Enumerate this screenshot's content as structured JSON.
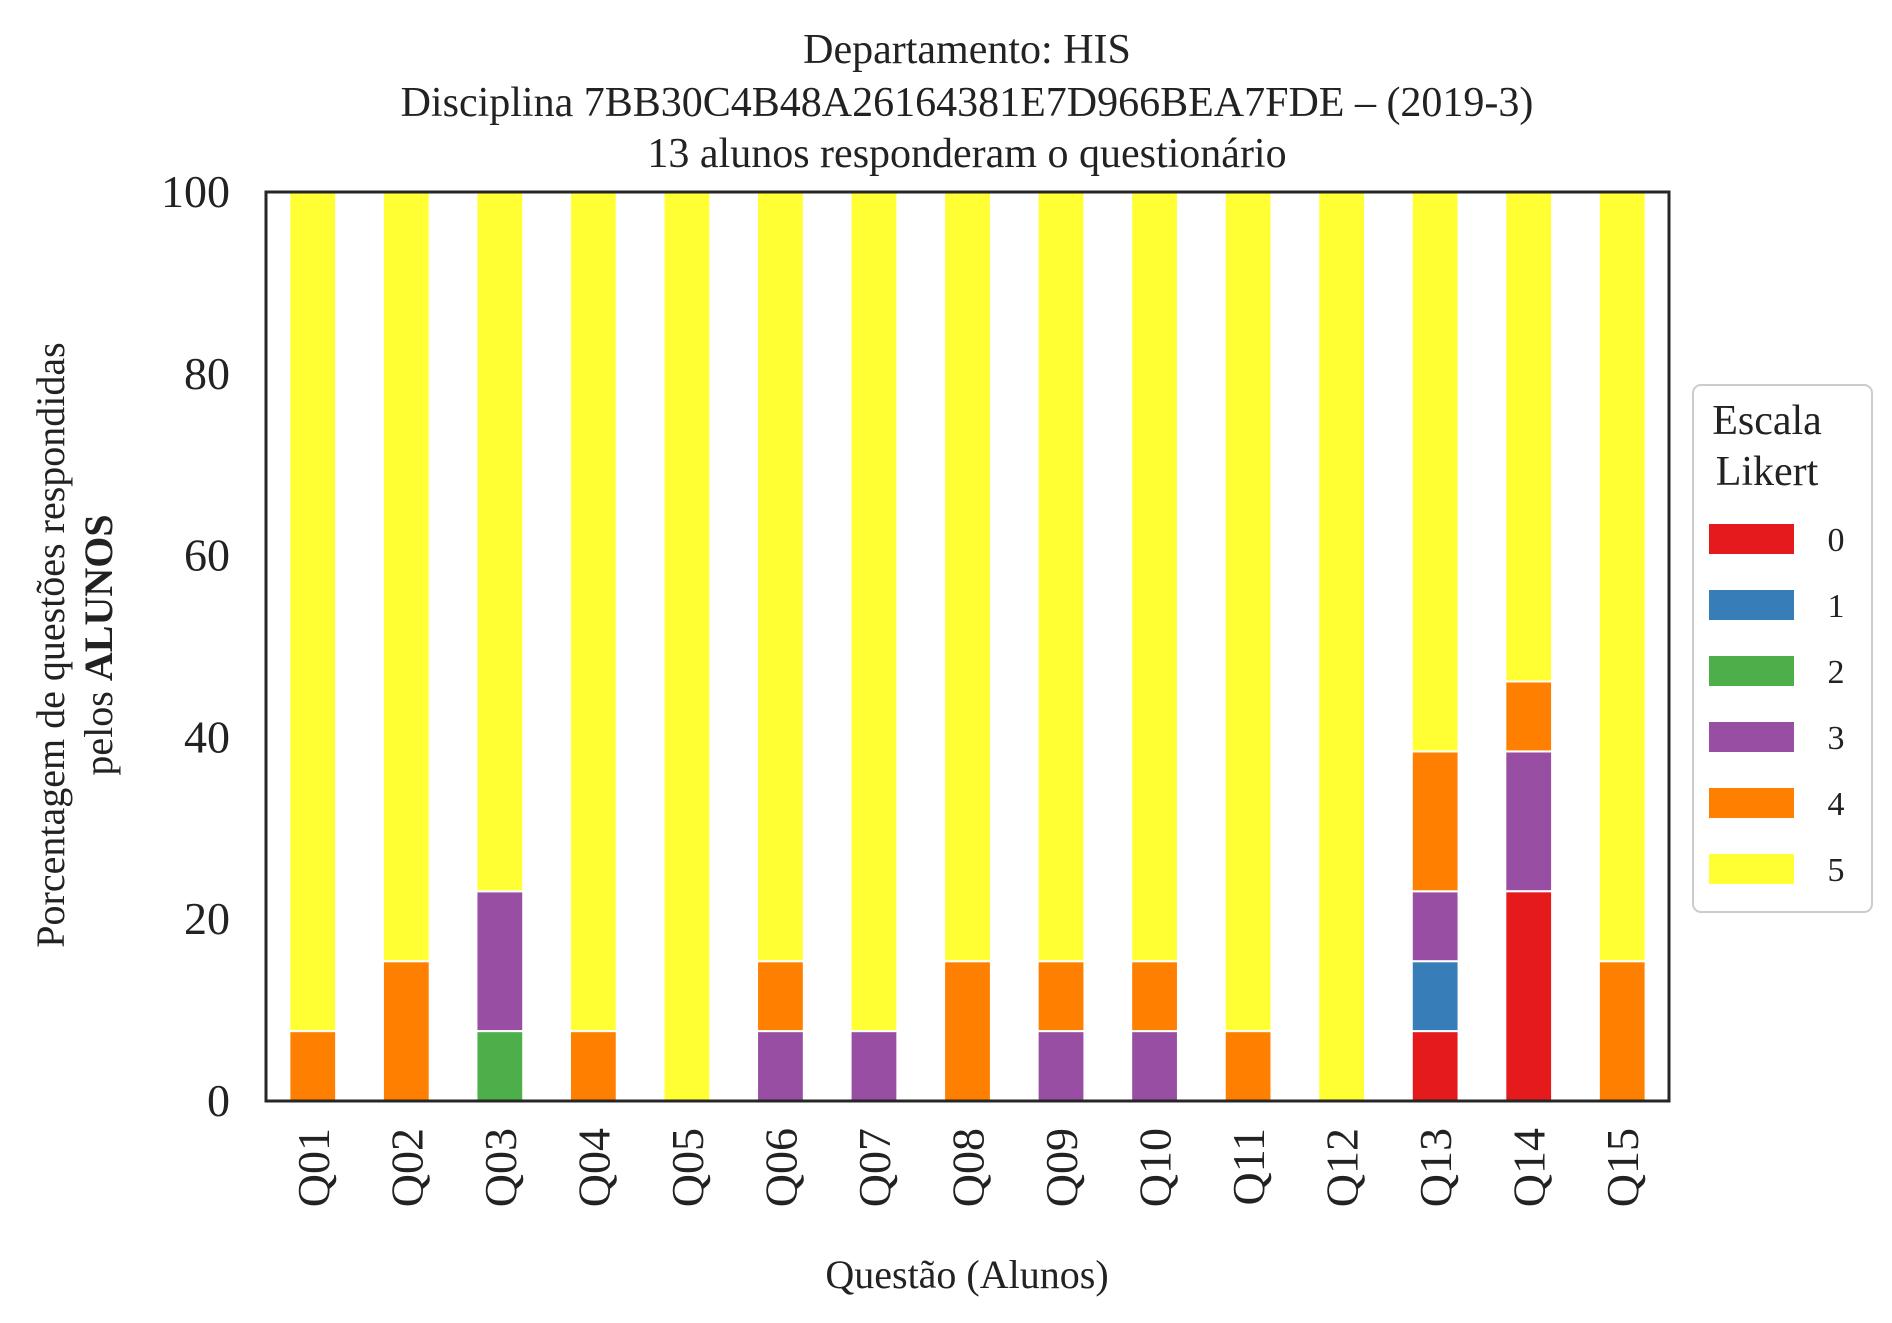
{
  "chart_data": {
    "type": "bar",
    "stacked": true,
    "title_lines": [
      "Departamento: HIS",
      "Disciplina 7BB30C4B48A26164381E7D966BEA7FDE – (2019-3)",
      "13 alunos responderam o questionário"
    ],
    "xlabel": "Questão (Alunos)",
    "ylabel_line1": "Porcentagem de questões respondidas",
    "ylabel_line2_prefix": "pelos ",
    "ylabel_line2_bold": "ALUNOS",
    "ylim": [
      0,
      100
    ],
    "yticks": [
      "0",
      "20",
      "40",
      "60",
      "80",
      "100"
    ],
    "grid": false,
    "legend_position": "right",
    "legend_title_lines": [
      "Escala",
      "Likert"
    ],
    "categories": [
      "Q01",
      "Q02",
      "Q03",
      "Q04",
      "Q05",
      "Q06",
      "Q07",
      "Q08",
      "Q09",
      "Q10",
      "Q11",
      "Q12",
      "Q13",
      "Q14",
      "Q15"
    ],
    "series": [
      {
        "name": "0",
        "color": "#e41a1c",
        "values": [
          0,
          0,
          0,
          0,
          0,
          0,
          0,
          0,
          0,
          0,
          0,
          0,
          7.69,
          23.08,
          0
        ]
      },
      {
        "name": "1",
        "color": "#377eb8",
        "values": [
          0,
          0,
          0,
          0,
          0,
          0,
          0,
          0,
          0,
          0,
          0,
          0,
          7.69,
          0,
          0
        ]
      },
      {
        "name": "2",
        "color": "#4daf4a",
        "values": [
          0,
          0,
          7.69,
          0,
          0,
          0,
          0,
          0,
          0,
          0,
          0,
          0,
          0,
          0,
          0
        ]
      },
      {
        "name": "3",
        "color": "#984ea3",
        "values": [
          0,
          0,
          15.38,
          0,
          0,
          7.69,
          7.69,
          0,
          7.69,
          7.69,
          0,
          0,
          7.69,
          15.38,
          0
        ]
      },
      {
        "name": "4",
        "color": "#ff7f00",
        "values": [
          7.69,
          15.38,
          0,
          7.69,
          0,
          7.69,
          0,
          15.38,
          7.69,
          7.69,
          7.69,
          0,
          15.38,
          7.69,
          15.38
        ]
      },
      {
        "name": "5",
        "color": "#ffff33",
        "values": [
          92.31,
          84.62,
          76.92,
          92.31,
          100,
          84.62,
          92.31,
          84.62,
          84.62,
          84.62,
          92.31,
          100,
          61.54,
          53.85,
          84.62
        ]
      }
    ]
  }
}
